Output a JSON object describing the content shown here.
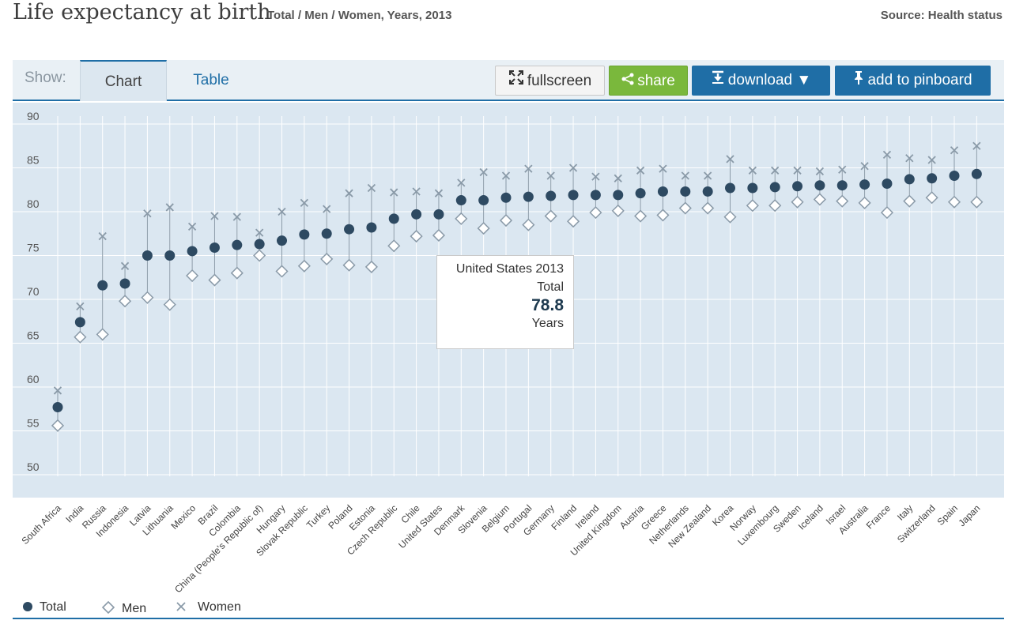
{
  "header": {
    "title": "Life expectancy at birth",
    "subtitle": "Total / Men / Women, Years, 2013",
    "source": "Source: Health status"
  },
  "toolbar": {
    "show_label": "Show:",
    "tabs": [
      {
        "label": "Chart",
        "active": true
      },
      {
        "label": "Table",
        "active": false
      }
    ],
    "buttons": {
      "fullscreen": "fullscreen",
      "share": "share",
      "download": "download ▼",
      "pinboard": "add to pinboard"
    }
  },
  "tooltip": {
    "title": "United States 2013",
    "label": "Total",
    "value": "78.8",
    "unit": "Years"
  },
  "legend": {
    "total": "Total",
    "men": "Men",
    "women": "Women"
  },
  "colors": {
    "total": "#2e4a62",
    "men": "#8a9aa8",
    "women": "#8a9aa8",
    "accent": "#1f6ea6",
    "share": "#7ab83c",
    "plot_bg": "#dbe7f1"
  },
  "chart_data": {
    "type": "scatter",
    "title": "Life expectancy at birth",
    "ylim": [
      50,
      90
    ],
    "yticks": [
      50,
      55,
      60,
      65,
      70,
      75,
      80,
      85,
      90
    ],
    "grid": true,
    "legend_position": "bottom-left",
    "categories": [
      "South Africa",
      "India",
      "Russia",
      "Indonesia",
      "Latvia",
      "Lithuania",
      "Mexico",
      "Brazil",
      "Colombia",
      "China (People's Republic of)",
      "Hungary",
      "Slovak Republic",
      "Turkey",
      "Poland",
      "Estonia",
      "Czech Republic",
      "Chile",
      "United States",
      "Denmark",
      "Slovenia",
      "Belgium",
      "Portugal",
      "Germany",
      "Finland",
      "Ireland",
      "United Kingdom",
      "Austria",
      "Greece",
      "Netherlands",
      "New Zealand",
      "Korea",
      "Norway",
      "Luxembourg",
      "Sweden",
      "Iceland",
      "Israel",
      "Australia",
      "France",
      "Italy",
      "Switzerland",
      "Spain",
      "Japan"
    ],
    "series": [
      {
        "name": "Total",
        "marker": "circle",
        "values": [
          56.8,
          66.5,
          70.7,
          70.9,
          74.1,
          74.1,
          74.6,
          75.0,
          75.3,
          75.4,
          75.8,
          76.5,
          76.6,
          77.1,
          77.3,
          78.3,
          78.8,
          78.8,
          80.4,
          80.4,
          80.7,
          80.8,
          80.9,
          81.0,
          81.0,
          81.0,
          81.2,
          81.4,
          81.4,
          81.4,
          81.8,
          81.8,
          81.9,
          82.0,
          82.1,
          82.1,
          82.2,
          82.3,
          82.8,
          82.9,
          83.2,
          83.4
        ]
      },
      {
        "name": "Men",
        "marker": "diamond",
        "values": [
          54.7,
          64.8,
          65.1,
          68.9,
          69.3,
          68.5,
          71.8,
          71.3,
          72.1,
          74.1,
          72.3,
          72.9,
          73.7,
          73.0,
          72.8,
          75.2,
          76.3,
          76.4,
          78.3,
          77.2,
          78.1,
          77.6,
          78.6,
          78.0,
          79.0,
          79.2,
          78.6,
          78.7,
          79.5,
          79.5,
          78.5,
          79.8,
          79.8,
          80.2,
          80.5,
          80.3,
          80.1,
          79.0,
          80.3,
          80.7,
          80.2,
          80.2
        ]
      },
      {
        "name": "Women",
        "marker": "x",
        "values": [
          58.7,
          68.3,
          76.3,
          72.9,
          78.9,
          79.6,
          77.4,
          78.6,
          78.5,
          76.7,
          79.1,
          80.1,
          79.4,
          81.2,
          81.8,
          81.3,
          81.4,
          81.2,
          82.4,
          83.6,
          83.2,
          84.0,
          83.2,
          84.1,
          83.1,
          82.9,
          83.8,
          84.0,
          83.2,
          83.2,
          85.1,
          83.8,
          83.8,
          83.8,
          83.7,
          83.9,
          84.3,
          85.6,
          85.2,
          85.0,
          86.1,
          86.6
        ]
      }
    ]
  }
}
